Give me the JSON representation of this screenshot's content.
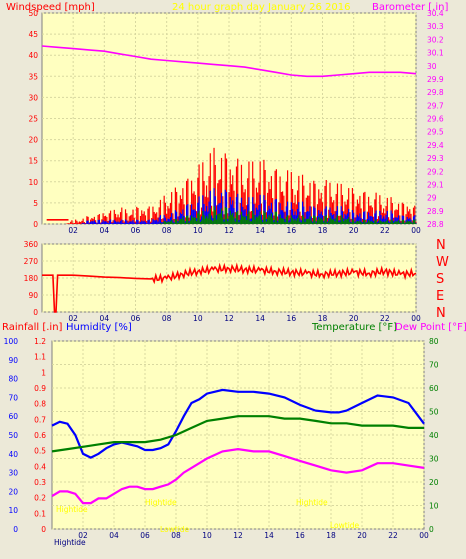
{
  "header": {
    "windspeed_label": "Windspeed [mph]",
    "title": "24 hour graph day   January 26 2016",
    "barometer_label": "Barometer [.in]"
  },
  "colors": {
    "frame_bg": "#ece9d8",
    "plot_bg": "#ffffc0",
    "windspeed": "#ff0000",
    "wind_avg": "#0000ff",
    "wind_low": "#008000",
    "barometer": "#ff00ff",
    "rainfall_axis": "#ff0000",
    "humidity": "#0000ff",
    "temperature": "#008000",
    "dewpoint": "#ff00ff",
    "direction": "#ff0000",
    "title_text": "#ffff00",
    "x_tick_text": "#000080"
  },
  "chart_data": [
    {
      "type": "line",
      "name": "wind-and-barometer",
      "x_ticks": [
        "02",
        "04",
        "06",
        "08",
        "10",
        "12",
        "14",
        "16",
        "18",
        "20",
        "22",
        "00"
      ],
      "left_axis": {
        "label": "Windspeed [mph]",
        "ylim": [
          0,
          50
        ],
        "ticks": [
          "0",
          "5",
          "10",
          "15",
          "20",
          "25",
          "30",
          "35",
          "40",
          "45",
          "50"
        ]
      },
      "right_axis": {
        "label": "Barometer [.in]",
        "ylim": [
          28.8,
          30.4
        ],
        "ticks": [
          "28.8",
          "28.9",
          "29",
          "29.1",
          "29.2",
          "29.3",
          "29.4",
          "29.5",
          "29.6",
          "29.7",
          "29.8",
          "29.9",
          "30",
          "30.1",
          "30.2",
          "30.3",
          "30.4"
        ]
      },
      "series": [
        {
          "axis": "right",
          "x": [
            0,
            1,
            2,
            3,
            4,
            5,
            6,
            7,
            8,
            9,
            10,
            11,
            12,
            13,
            14,
            15,
            16,
            17,
            18,
            19,
            20,
            21,
            22,
            23,
            24
          ],
          "y": [
            30.15,
            30.14,
            30.13,
            30.12,
            30.11,
            30.09,
            30.07,
            30.05,
            30.04,
            30.03,
            30.02,
            30.01,
            30.0,
            29.99,
            29.97,
            29.95,
            29.93,
            29.92,
            29.92,
            29.93,
            29.94,
            29.95,
            29.95,
            29.95,
            29.94
          ]
        },
        {
          "axis": "left",
          "x": [
            0,
            0.5,
            1,
            1.5,
            2,
            2.5,
            3,
            3.5,
            4,
            4.5,
            5,
            5.5,
            6,
            6.5,
            7,
            7.5,
            8,
            8.5,
            9,
            9.5,
            10,
            10.5,
            11,
            11.5,
            12,
            12.5,
            13,
            13.5,
            14,
            14.5,
            15,
            15.5,
            16,
            16.5,
            17,
            17.5,
            18,
            18.5,
            19,
            19.5,
            20,
            20.5,
            21,
            21.5,
            22,
            22.5,
            23,
            23.5,
            24
          ],
          "y": [
            0,
            0,
            0,
            0,
            1,
            1,
            2,
            2,
            3,
            3,
            4,
            3,
            4,
            4,
            4,
            5,
            7,
            8,
            10,
            11,
            13,
            15,
            17,
            17,
            16,
            15,
            14,
            14,
            15,
            14,
            13,
            12,
            12,
            11,
            11,
            10,
            10,
            10,
            9,
            9,
            8,
            8,
            7,
            7,
            6,
            6,
            5,
            5,
            4
          ]
        },
        {
          "axis": "left",
          "x": [
            0,
            0.5,
            1,
            1.5,
            2,
            2.5,
            3,
            3.5,
            4,
            4.5,
            5,
            5.5,
            6,
            6.5,
            7,
            7.5,
            8,
            8.5,
            9,
            9.5,
            10,
            10.5,
            11,
            11.5,
            12,
            12.5,
            13,
            13.5,
            14,
            14.5,
            15,
            15.5,
            16,
            16.5,
            17,
            17.5,
            18,
            18.5,
            19,
            19.5,
            20,
            20.5,
            21,
            21.5,
            22,
            22.5,
            23,
            23.5,
            24
          ],
          "y": [
            0,
            0,
            0,
            0,
            0,
            0,
            1,
            1,
            1,
            1,
            1,
            1,
            1,
            1,
            1,
            2,
            2,
            3,
            4,
            5,
            6,
            7,
            8,
            8,
            8,
            7,
            6,
            6,
            7,
            6,
            6,
            5,
            5,
            5,
            5,
            4,
            4,
            4,
            4,
            4,
            3,
            3,
            3,
            3,
            3,
            3,
            2,
            2,
            2
          ]
        },
        {
          "axis": "left",
          "x": [
            0,
            0.5,
            1,
            1.5,
            2,
            2.5,
            3,
            3.5,
            4,
            4.5,
            5,
            5.5,
            6,
            6.5,
            7,
            7.5,
            8,
            8.5,
            9,
            9.5,
            10,
            10.5,
            11,
            11.5,
            12,
            12.5,
            13,
            13.5,
            14,
            14.5,
            15,
            15.5,
            16,
            16.5,
            17,
            17.5,
            18,
            18.5,
            19,
            19.5,
            20,
            20.5,
            21,
            21.5,
            22,
            22.5,
            23,
            23.5,
            24
          ],
          "y": [
            0,
            0,
            0,
            0,
            0,
            0,
            0,
            0,
            0,
            0,
            0,
            0,
            0,
            0,
            0,
            0,
            1,
            1,
            2,
            2,
            3,
            3,
            4,
            4,
            4,
            3,
            3,
            3,
            3,
            3,
            3,
            2,
            2,
            2,
            2,
            2,
            2,
            2,
            2,
            2,
            1,
            1,
            1,
            1,
            1,
            1,
            1,
            1,
            1
          ]
        }
      ]
    },
    {
      "type": "line",
      "name": "wind-direction",
      "x_ticks": [
        "02",
        "04",
        "06",
        "08",
        "10",
        "12",
        "14",
        "16",
        "18",
        "20",
        "22",
        "00"
      ],
      "left_axis": {
        "ylim": [
          0,
          360
        ],
        "ticks": [
          "0",
          "90",
          "180",
          "270",
          "360"
        ]
      },
      "right_axis": {
        "ticks": [
          "N",
          "E",
          "S",
          "W",
          "N"
        ]
      },
      "series": [
        {
          "x": [
            0,
            0.7,
            0.8,
            0.9,
            1.0,
            2,
            3,
            4,
            5,
            6,
            7,
            8,
            9,
            10,
            11,
            12,
            13,
            14,
            15,
            16,
            17,
            18,
            19,
            20,
            21,
            22,
            23,
            24
          ],
          "y": [
            195,
            195,
            0,
            0,
            195,
            195,
            190,
            185,
            182,
            178,
            175,
            178,
            200,
            215,
            225,
            230,
            225,
            220,
            215,
            210,
            205,
            200,
            205,
            210,
            205,
            215,
            200,
            205
          ]
        }
      ]
    },
    {
      "type": "line",
      "name": "rain-humidity-temperature",
      "x_ticks": [
        "02",
        "04",
        "06",
        "08",
        "10",
        "12",
        "14",
        "16",
        "18",
        "20",
        "22",
        "00"
      ],
      "left_axis_rain": {
        "label": "Rainfall [.in]",
        "ylim": [
          0,
          1.2
        ],
        "ticks": [
          "0",
          "0.1",
          "0.2",
          "0.3",
          "0.4",
          "0.5",
          "0.6",
          "0.7",
          "0.8",
          "0.9",
          "1",
          "1.1",
          "1.2"
        ]
      },
      "left_axis_humidity": {
        "label": "Humidity [%]",
        "ylim": [
          0,
          100
        ],
        "ticks": [
          "0",
          "10",
          "20",
          "30",
          "40",
          "50",
          "60",
          "70",
          "80",
          "90",
          "100"
        ]
      },
      "right_axis": {
        "label": "Temperature [°F]",
        "label2": "Dew Point [°F]",
        "ylim": [
          0,
          80
        ],
        "ticks": [
          "0",
          "10",
          "20",
          "30",
          "40",
          "50",
          "60",
          "70",
          "80"
        ]
      },
      "series": [
        {
          "axis": "humidity",
          "x": [
            0,
            0.5,
            1,
            1.5,
            2,
            2.5,
            3,
            3.5,
            4,
            4.5,
            5,
            5.5,
            6,
            6.5,
            7,
            7.5,
            8,
            8.5,
            9,
            9.5,
            10,
            11,
            12,
            13,
            14,
            15,
            16,
            17,
            18,
            18.5,
            19,
            20,
            21,
            22,
            23,
            24
          ],
          "y": [
            55,
            57,
            56,
            50,
            40,
            38,
            40,
            43,
            45,
            46,
            45,
            44,
            42,
            42,
            43,
            45,
            52,
            60,
            67,
            69,
            72,
            74,
            73,
            73,
            72,
            70,
            66,
            63,
            62,
            62,
            63,
            67,
            71,
            70,
            67,
            56
          ]
        },
        {
          "axis": "temperature",
          "x": [
            0,
            1,
            2,
            3,
            4,
            5,
            6,
            7,
            8,
            9,
            10,
            11,
            12,
            13,
            14,
            15,
            16,
            17,
            18,
            19,
            20,
            21,
            22,
            23,
            24
          ],
          "y": [
            33,
            34,
            35,
            36,
            37,
            37,
            37,
            38,
            40,
            43,
            46,
            47,
            48,
            48,
            48,
            47,
            47,
            46,
            45,
            45,
            44,
            44,
            44,
            43,
            43
          ]
        },
        {
          "axis": "temperature",
          "x": [
            0,
            0.5,
            1,
            1.5,
            2,
            2.5,
            3,
            3.5,
            4,
            4.5,
            5,
            5.5,
            6,
            6.5,
            7,
            7.5,
            8,
            8.5,
            9,
            9.5,
            10,
            11,
            12,
            13,
            14,
            15,
            16,
            17,
            18,
            19,
            20,
            21,
            22,
            23,
            24
          ],
          "y": [
            14,
            16,
            16,
            15,
            11,
            11,
            13,
            13,
            15,
            17,
            18,
            18,
            17,
            17,
            18,
            19,
            21,
            24,
            26,
            28,
            30,
            33,
            34,
            33,
            33,
            31,
            29,
            27,
            25,
            24,
            25,
            28,
            28,
            27,
            26
          ]
        }
      ],
      "annotations": [
        "Hightide",
        "Hightide",
        "Lowtide",
        "Hightide",
        "Lowtide"
      ]
    }
  ]
}
